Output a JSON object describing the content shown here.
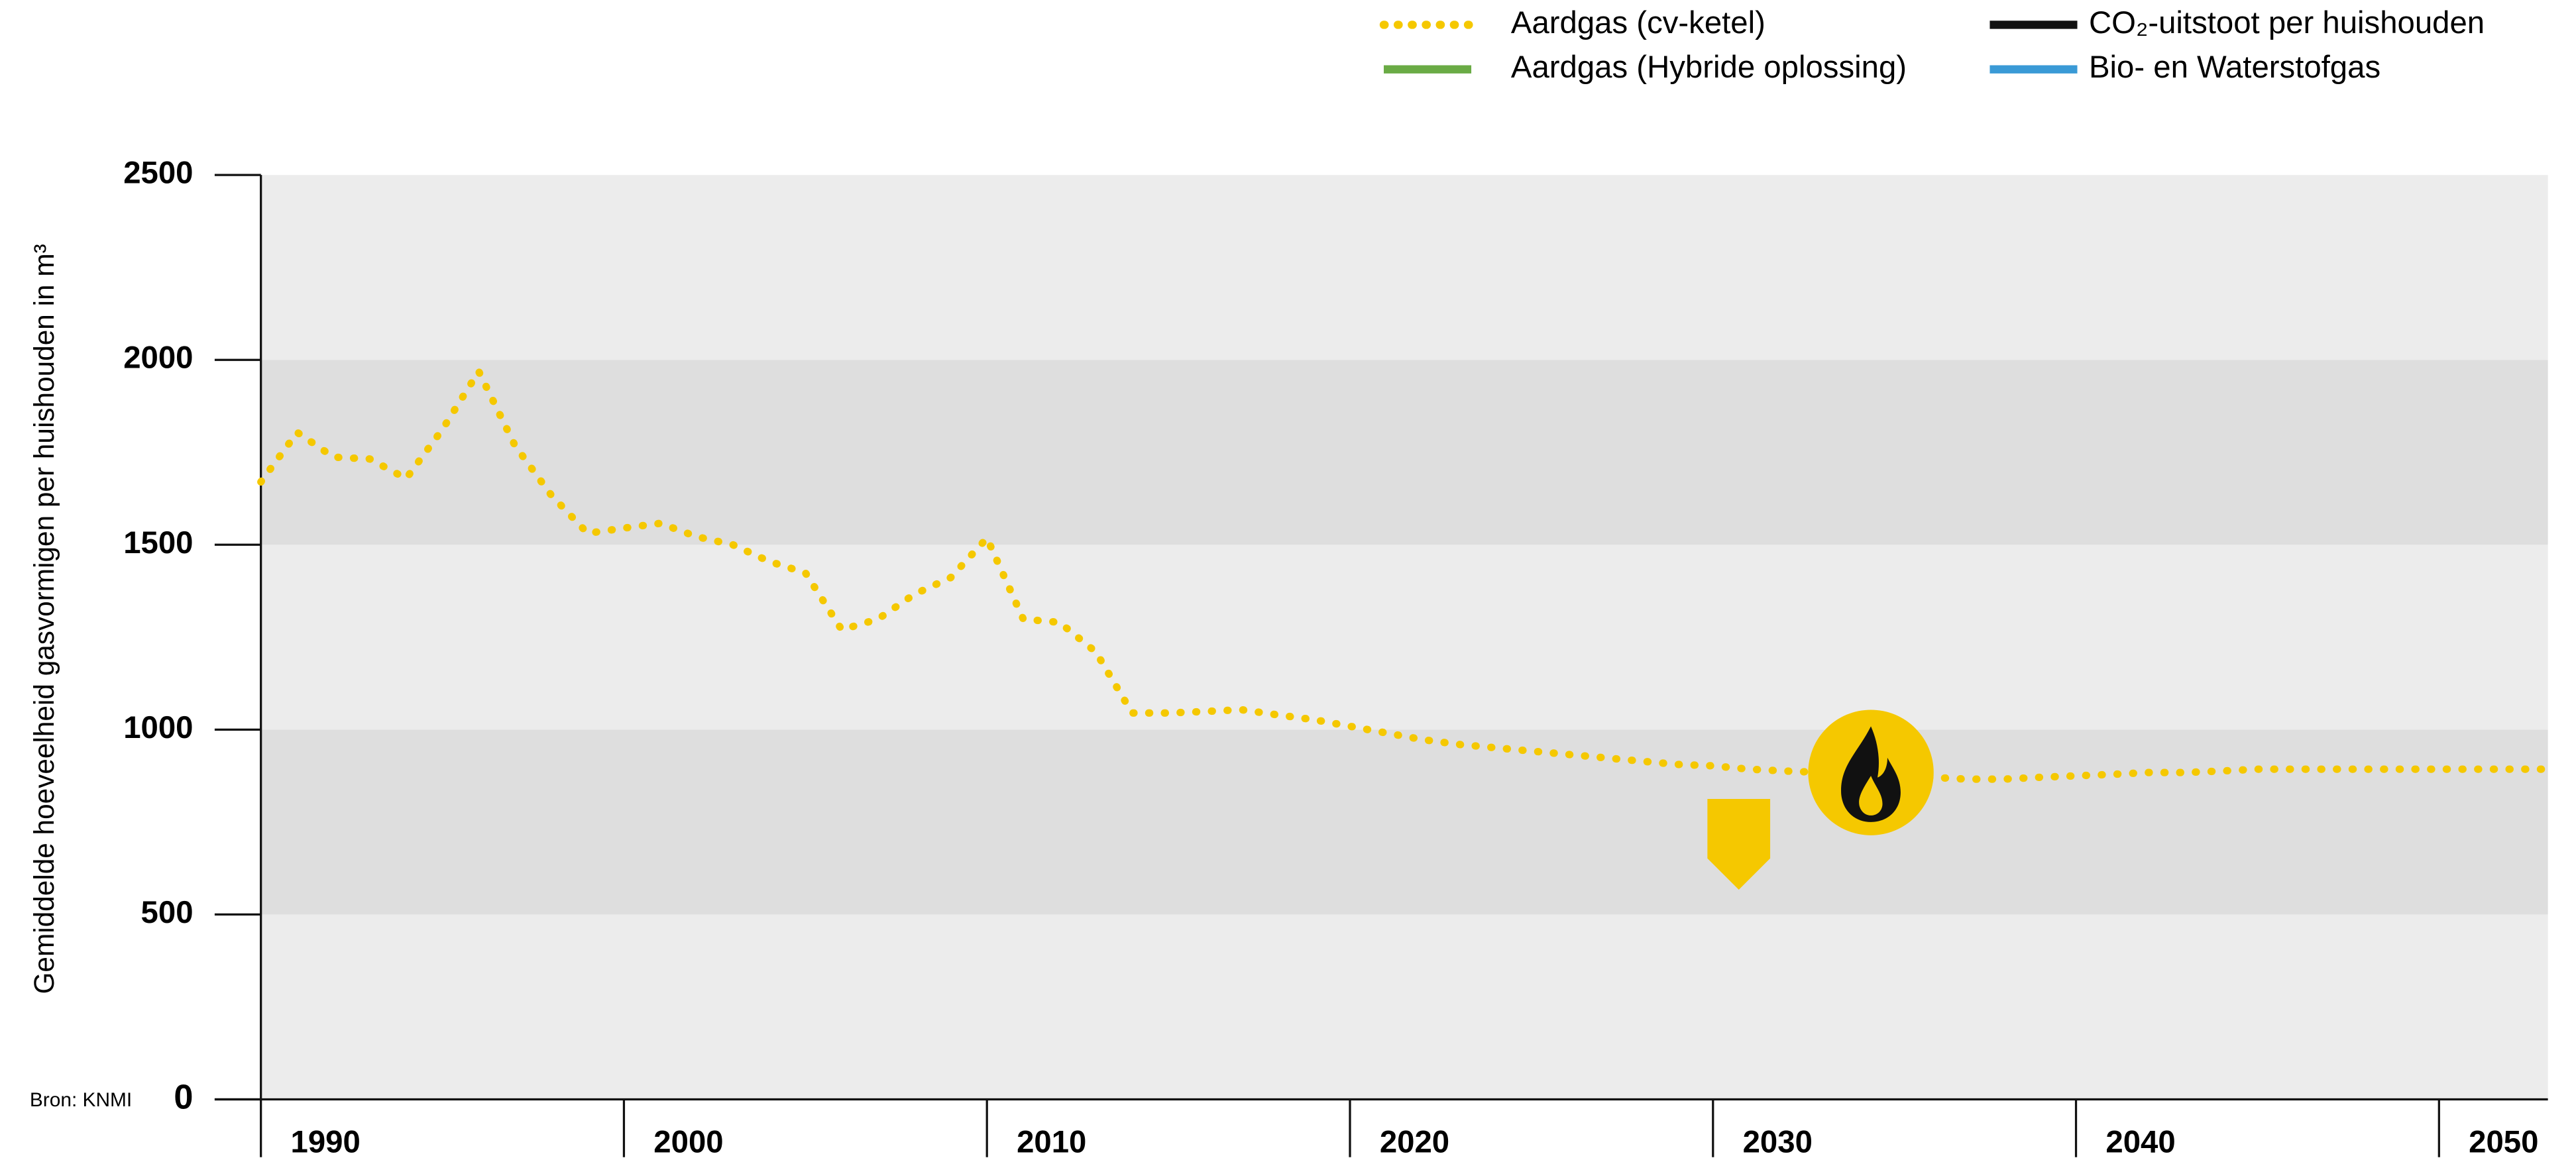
{
  "chart_data": {
    "type": "line",
    "y_label": "Gemiddelde hoeveelheid gasvormigen per huishouden in m³",
    "source": "Bron: KNMI",
    "x": [
      1990,
      1991,
      1992,
      1993,
      1994,
      1995,
      1996,
      1997,
      1998,
      1999,
      2000,
      2001,
      2002,
      2003,
      2004,
      2005,
      2006,
      2007,
      2008,
      2009,
      2010,
      2011,
      2012,
      2013,
      2014,
      2015,
      2016,
      2017,
      2018,
      2019,
      2020,
      2021,
      2022,
      2023,
      2024,
      2025,
      2026,
      2027,
      2028,
      2029,
      2030,
      2031,
      2032,
      2033,
      2034,
      2035,
      2036,
      2037,
      2038,
      2039,
      2040,
      2041,
      2042,
      2043,
      2044,
      2045,
      2046,
      2047,
      2048,
      2049,
      2050,
      2051,
      2052,
      2053
    ],
    "series": [
      {
        "name": "Aardgas (cv-ketel)",
        "color": "#f5c800",
        "dotted": true,
        "values": [
          1670,
          1804,
          1737,
          1732,
          1679,
          1812,
          1969,
          1768,
          1634,
          1531,
          1545,
          1558,
          1522,
          1500,
          1455,
          1424,
          1270,
          1299,
          1366,
          1411,
          1518,
          1299,
          1290,
          1210,
          1045,
          1045,
          1049,
          1054,
          1040,
          1027,
          1009,
          991,
          973,
          960,
          951,
          942,
          933,
          924,
          915,
          906,
          902,
          893,
          888,
          884,
          879,
          875,
          871,
          866,
          866,
          871,
          875,
          879,
          884,
          884,
          888,
          893,
          893,
          893,
          893,
          893,
          893,
          893,
          893,
          893
        ]
      }
    ],
    "legend": [
      {
        "name": "Aardgas (cv-ketel)",
        "color": "#f5c800",
        "dotted": true
      },
      {
        "name": "Aardgas (Hybride oplossing)",
        "color": "#6aab45",
        "dotted": false
      },
      {
        "name": "CO₂-uitstoot per huishouden",
        "color": "#111111",
        "dotted": false
      },
      {
        "name": "Bio- en Waterstofgas",
        "color": "#3a9ad6",
        "dotted": false
      }
    ],
    "xlim": [
      1990,
      2053
    ],
    "xticks": [
      1990,
      2000,
      2010,
      2020,
      2030,
      2040,
      2050
    ],
    "ylim": [
      0,
      2500
    ],
    "yticks": [
      0,
      500,
      1000,
      1500,
      2000,
      2500
    ]
  }
}
